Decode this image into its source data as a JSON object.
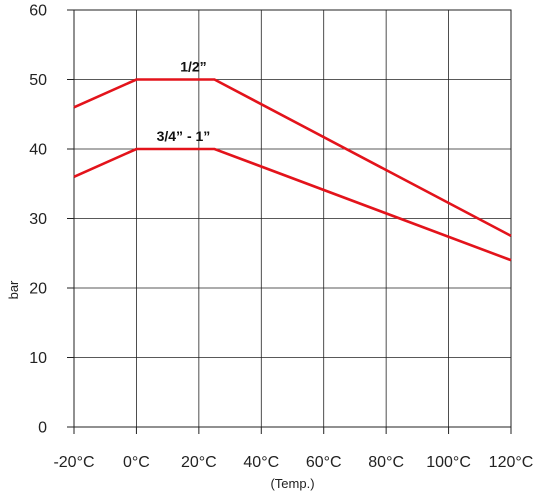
{
  "chart_data": {
    "type": "line",
    "title": "",
    "xlabel": "(Temp.)",
    "ylabel": "bar",
    "x": [
      -20,
      0,
      20,
      40,
      60,
      80,
      100,
      120
    ],
    "x_tick_labels": [
      "-20°C",
      "0°C",
      "20°C",
      "40°C",
      "60°C",
      "80°C",
      "100°C",
      "120°C"
    ],
    "y_ticks": [
      0,
      10,
      20,
      30,
      40,
      50,
      60
    ],
    "xlim": [
      -20,
      120
    ],
    "ylim": [
      0,
      60
    ],
    "grid": true,
    "series": [
      {
        "name": "1/2”",
        "points": [
          [
            -20,
            46
          ],
          [
            0,
            50
          ],
          [
            25,
            50
          ],
          [
            120,
            27.5
          ]
        ]
      },
      {
        "name": "3/4” - 1”",
        "points": [
          [
            -20,
            36
          ],
          [
            0,
            40
          ],
          [
            25,
            40
          ],
          [
            120,
            24
          ]
        ]
      }
    ],
    "colors": {
      "series": "#e3131b",
      "grid": "#222222",
      "axis": "#222222"
    }
  }
}
